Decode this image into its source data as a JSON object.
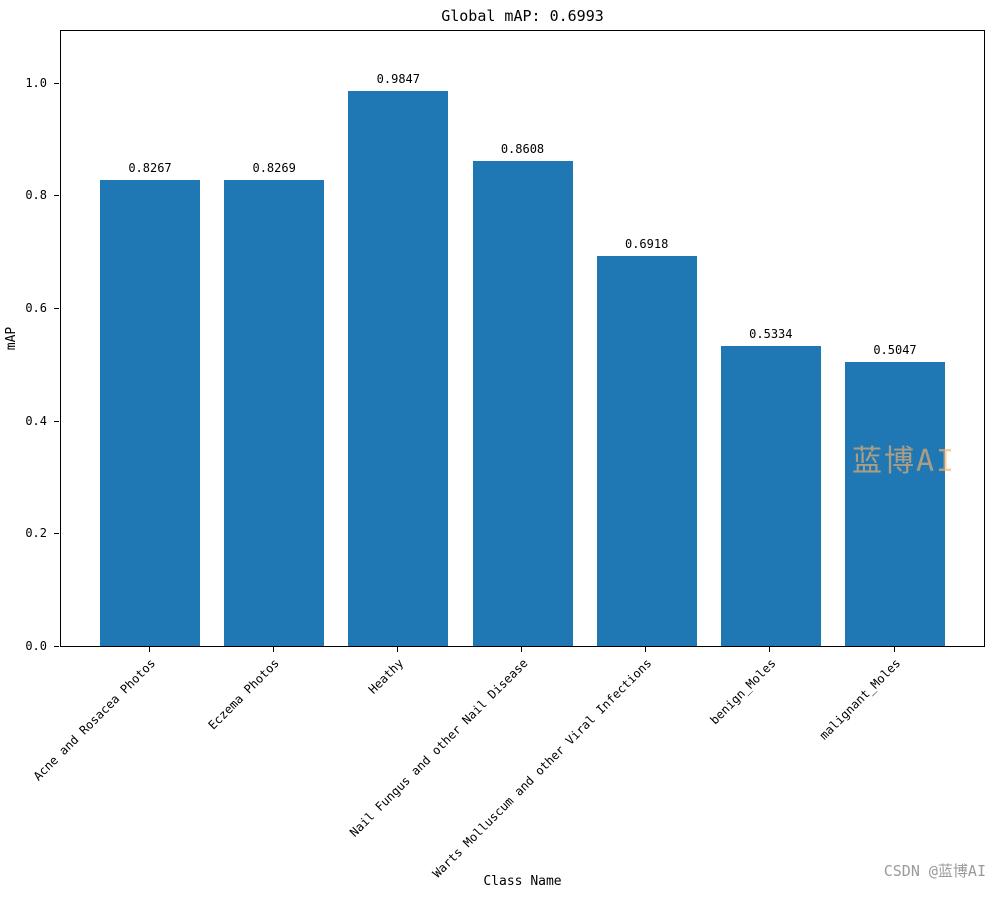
{
  "figure": {
    "title": "Global mAP: 0.6993",
    "watermark": "蓝博AI",
    "credit": "CSDN @蓝博AI"
  },
  "chart_data": {
    "type": "bar",
    "title": "Global mAP: 0.6993",
    "xlabel": "Class Name",
    "ylabel": "mAP",
    "categories": [
      "Acne and Rosacea Photos",
      "Eczema Photos",
      "Heathy",
      "Nail Fungus and other Nail Disease",
      "Warts Molluscum and other Viral Infections",
      "benign_Moles",
      "malignant_Moles"
    ],
    "values": [
      0.8267,
      0.8269,
      0.9847,
      0.8608,
      0.6918,
      0.5334,
      0.5047
    ],
    "value_labels": [
      "0.8267",
      "0.8269",
      "0.9847",
      "0.8608",
      "0.6918",
      "0.5334",
      "0.5047"
    ],
    "yticks": [
      0.0,
      0.2,
      0.4,
      0.6,
      0.8,
      1.0
    ],
    "ytick_labels": [
      "0.0",
      "0.2",
      "0.4",
      "0.6",
      "0.8",
      "1.0"
    ],
    "ylim": [
      0,
      1.092
    ],
    "bar_color": "#1f77b4",
    "grid": false,
    "legend_position": "none"
  }
}
